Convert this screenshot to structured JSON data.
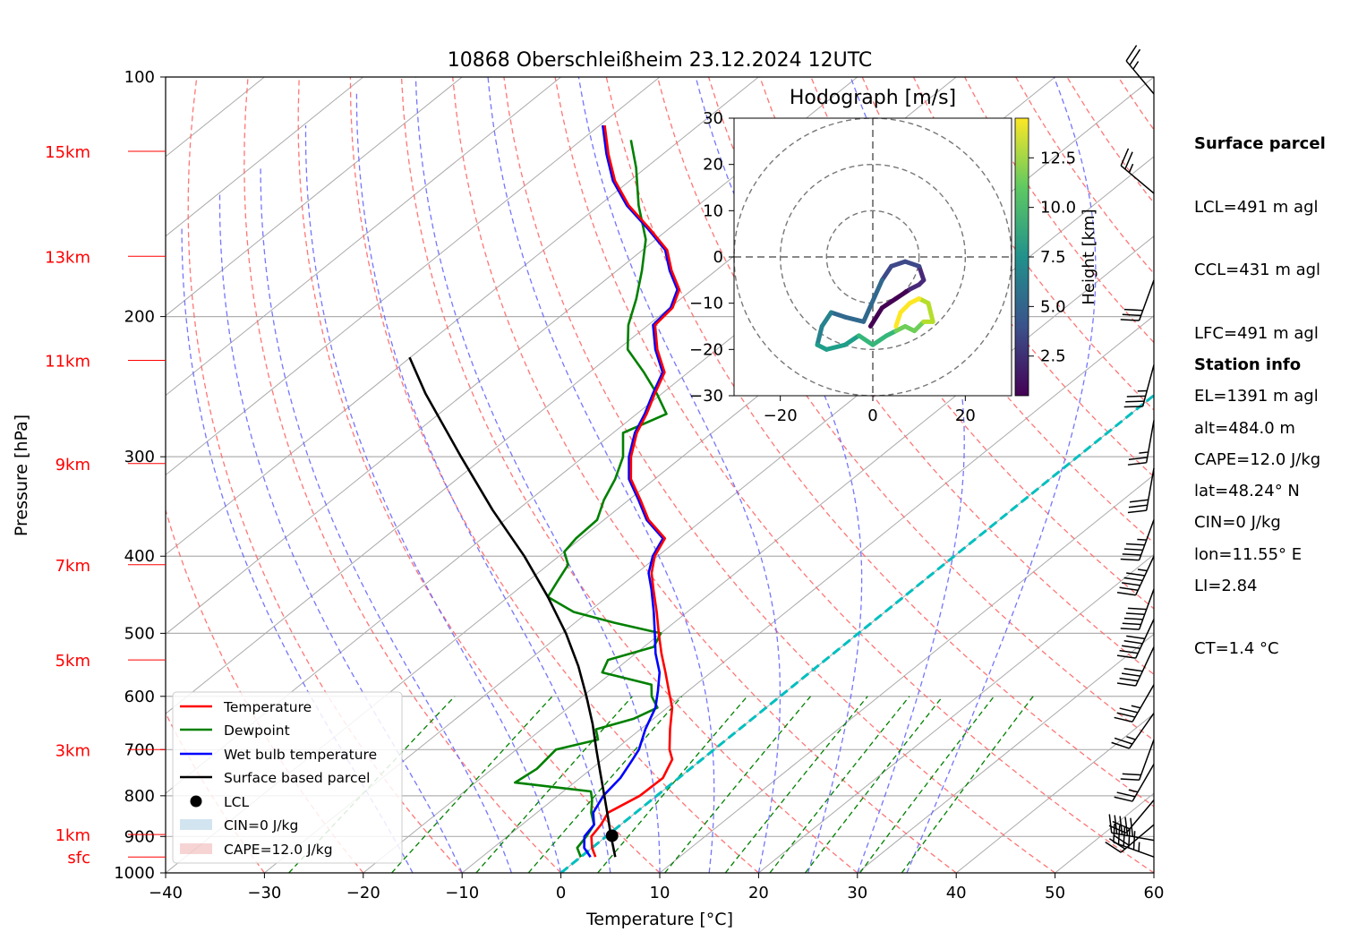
{
  "title": "10868 Oberschleißheim 23.12.2024 12UTC",
  "colors": {
    "temperature": "#ff0000",
    "dewpoint": "#008000",
    "wetbulb": "#0000ff",
    "parcel": "#000000",
    "dry_adiabat": "#ff6666",
    "moist_adiabat": "#6666ff",
    "mixing_ratio": "#008000",
    "isotherm": "#aaaaaa",
    "zero_isotherm": "#00bfbf",
    "height_label": "#ff0000"
  },
  "side_panel": {
    "surface_heading": "Surface parcel",
    "lcl": "LCL=491 m agl",
    "ccl": "CCL=431 m agl",
    "lfc": "LFC=491 m agl",
    "el": "EL=1391 m agl",
    "cape": "CAPE=12.0 J/kg",
    "cin": "CIN=0 J/kg",
    "li": "LI=2.84",
    "ct": "CT=1.4 °C",
    "station_heading": "Station info",
    "alt": "alt=484.0 m",
    "lat": "lat=48.24° N",
    "lon": "lon=11.55° E"
  },
  "chart_data": [
    {
      "type": "line",
      "subtype": "skew-T log-p",
      "title": "10868 Oberschleißheim 23.12.2024 12UTC",
      "xlabel": "Temperature [°C]",
      "ylabel": "Pressure [hPa]",
      "xlim": [
        -40,
        60
      ],
      "ylim": [
        1000,
        100
      ],
      "y_scale": "log",
      "x_ticks": [
        -40,
        -30,
        -20,
        -10,
        0,
        10,
        20,
        30,
        40,
        50,
        60
      ],
      "y_ticks": [
        100,
        200,
        300,
        400,
        500,
        600,
        700,
        800,
        900,
        1000
      ],
      "grid": true,
      "legend_position": "lower-left",
      "height_labels": [
        {
          "label": "sfc",
          "p": 955
        },
        {
          "label": "1km",
          "p": 895
        },
        {
          "label": "3km",
          "p": 700
        },
        {
          "label": "5km",
          "p": 540
        },
        {
          "label": "7km",
          "p": 410
        },
        {
          "label": "9km",
          "p": 306
        },
        {
          "label": "11km",
          "p": 227
        },
        {
          "label": "13km",
          "p": 168
        },
        {
          "label": "15km",
          "p": 124
        }
      ],
      "series": [
        {
          "name": "Temperature",
          "style": "line",
          "p": [
            955,
            930,
            900,
            870,
            840,
            800,
            760,
            720,
            700,
            660,
            620,
            590,
            560,
            530,
            500,
            470,
            440,
            420,
            400,
            380,
            360,
            340,
            320,
            300,
            280,
            265,
            250,
            235,
            220,
            205,
            195,
            185,
            175,
            165,
            155,
            145,
            135,
            125,
            115
          ],
          "t": [
            1.5,
            0.0,
            -1.5,
            -2.0,
            -2.8,
            -1.7,
            -1.6,
            -3.0,
            -4.5,
            -7.0,
            -9.5,
            -12.0,
            -14.6,
            -17.4,
            -20.2,
            -23.1,
            -26.3,
            -28.5,
            -30.3,
            -31.5,
            -35.5,
            -38.8,
            -42.4,
            -45.2,
            -47.6,
            -49.0,
            -50.7,
            -52.4,
            -56.0,
            -59.3,
            -59.7,
            -61.3,
            -64.5,
            -67.5,
            -72.0,
            -77.0,
            -81.5,
            -85.5,
            -89.5
          ]
        },
        {
          "name": "Dewpoint",
          "style": "line",
          "p": [
            955,
            930,
            900,
            870,
            840,
            810,
            790,
            770,
            740,
            700,
            680,
            660,
            640,
            620,
            600,
            580,
            560,
            540,
            520,
            500,
            485,
            470,
            450,
            430,
            410,
            395,
            380,
            360,
            340,
            320,
            300,
            280,
            265,
            250,
            235,
            220,
            205,
            190,
            175,
            160,
            145,
            130,
            120
          ],
          "t": [
            0.0,
            -1.5,
            -2.0,
            -2.7,
            -4.5,
            -6.0,
            -7.2,
            -16.0,
            -15.5,
            -16.0,
            -13.0,
            -14.5,
            -12.0,
            -11.0,
            -13.0,
            -14.5,
            -21.0,
            -22.0,
            -19.0,
            -20.0,
            -26.0,
            -31.5,
            -36.0,
            -37.0,
            -38.0,
            -40.0,
            -40.5,
            -40.7,
            -42.5,
            -44.0,
            -46.0,
            -49.0,
            -47.0,
            -50.5,
            -54.5,
            -59.0,
            -62.0,
            -64.5,
            -67.5,
            -71.0,
            -76.0,
            -81.0,
            -85.0
          ]
        },
        {
          "name": "Wet bulb temperature",
          "style": "line",
          "p": [
            955,
            930,
            900,
            870,
            840,
            800,
            760,
            720,
            700,
            660,
            620,
            590,
            560,
            530,
            500,
            470,
            440,
            420,
            400,
            380,
            360,
            340,
            320,
            300,
            280,
            265,
            250,
            235,
            220,
            205,
            195,
            185,
            175,
            165,
            155,
            145,
            135,
            125,
            115
          ],
          "t": [
            1.0,
            -0.8,
            -2.2,
            -2.7,
            -4.3,
            -5.4,
            -5.9,
            -7.0,
            -7.6,
            -9.5,
            -11.2,
            -13.1,
            -15.2,
            -18.0,
            -20.6,
            -23.4,
            -26.5,
            -28.8,
            -30.5,
            -31.7,
            -35.7,
            -39.0,
            -42.6,
            -45.4,
            -47.8,
            -49.2,
            -50.9,
            -52.6,
            -56.2,
            -59.5,
            -59.9,
            -61.5,
            -64.7,
            -67.7,
            -72.2,
            -77.2,
            -81.7,
            -85.7,
            -89.7
          ]
        },
        {
          "name": "Surface based parcel",
          "style": "line",
          "p": [
            955,
            900,
            850,
            800,
            750,
            700,
            650,
            600,
            550,
            500,
            450,
            400,
            350,
            300,
            250,
            225
          ],
          "t": [
            3.5,
            0.5,
            -2.3,
            -5.3,
            -8.5,
            -11.9,
            -15.5,
            -19.6,
            -24.2,
            -29.6,
            -36.0,
            -43.5,
            -52.5,
            -62.4,
            -73.9,
            -80.1
          ]
        },
        {
          "name": "LCL",
          "style": "marker",
          "p": [
            898
          ],
          "t": [
            0.5
          ]
        },
        {
          "name": "CIN=0 J/kg",
          "style": "patch"
        },
        {
          "name": "CAPE=12.0 J/kg",
          "style": "patch"
        }
      ]
    },
    {
      "type": "line",
      "subtype": "hodograph",
      "title": "Hodograph [m/s]",
      "xlim": [
        -30,
        30
      ],
      "ylim": [
        -30,
        30
      ],
      "x_ticks": [
        -20,
        0,
        20
      ],
      "y_ticks": [
        -30,
        -20,
        -10,
        0,
        10,
        20,
        30
      ],
      "rings": [
        10,
        20,
        30
      ],
      "colorbar": {
        "label": "Height [km]",
        "ticks": [
          2.5,
          5.0,
          7.5,
          10.0,
          12.5
        ],
        "range": [
          0.5,
          14.5
        ]
      },
      "u": [
        -0.5,
        2,
        5,
        8,
        10,
        11,
        10,
        7,
        4,
        2,
        -2,
        -6,
        -9,
        -11,
        -12,
        -10,
        -6,
        -3,
        0,
        3,
        5,
        7,
        9,
        11,
        13,
        12,
        10,
        8,
        6,
        5
      ],
      "v": [
        -15,
        -11,
        -9,
        -7,
        -6,
        -5,
        -2,
        -1,
        -2,
        -5,
        -14,
        -13,
        -12,
        -15,
        -19,
        -20,
        -19,
        -17,
        -19,
        -17,
        -16,
        -15,
        -16,
        -14,
        -14,
        -10,
        -9,
        -10,
        -12,
        -15
      ],
      "height_km": [
        0.5,
        1,
        1.5,
        2,
        2.5,
        3,
        3.5,
        4,
        4.5,
        5,
        5.5,
        6,
        6.5,
        7,
        7.5,
        8,
        8.5,
        9,
        9.5,
        10,
        10.5,
        11,
        11.5,
        12,
        12.5,
        13,
        13.5,
        14,
        14.2,
        14.5
      ]
    }
  ],
  "wind_barbs": [
    {
      "p": 955,
      "speed_kt": 55,
      "dir_deg": 290
    },
    {
      "p": 910,
      "speed_kt": 50,
      "dir_deg": 280
    },
    {
      "p": 870,
      "speed_kt": 30,
      "dir_deg": 230
    },
    {
      "p": 810,
      "speed_kt": 20,
      "dir_deg": 220
    },
    {
      "p": 730,
      "speed_kt": 25,
      "dir_deg": 210
    },
    {
      "p": 680,
      "speed_kt": 20,
      "dir_deg": 200
    },
    {
      "p": 630,
      "speed_kt": 25,
      "dir_deg": 215
    },
    {
      "p": 580,
      "speed_kt": 35,
      "dir_deg": 210
    },
    {
      "p": 520,
      "speed_kt": 40,
      "dir_deg": 205
    },
    {
      "p": 480,
      "speed_kt": 50,
      "dir_deg": 205
    },
    {
      "p": 440,
      "speed_kt": 50,
      "dir_deg": 200
    },
    {
      "p": 400,
      "speed_kt": 55,
      "dir_deg": 205
    },
    {
      "p": 360,
      "speed_kt": 45,
      "dir_deg": 200
    },
    {
      "p": 310,
      "speed_kt": 30,
      "dir_deg": 190
    },
    {
      "p": 270,
      "speed_kt": 25,
      "dir_deg": 190
    },
    {
      "p": 230,
      "speed_kt": 35,
      "dir_deg": 195
    },
    {
      "p": 180,
      "speed_kt": 30,
      "dir_deg": 200
    },
    {
      "p": 140,
      "speed_kt": 25,
      "dir_deg": 310
    },
    {
      "p": 105,
      "speed_kt": 25,
      "dir_deg": 320
    }
  ]
}
